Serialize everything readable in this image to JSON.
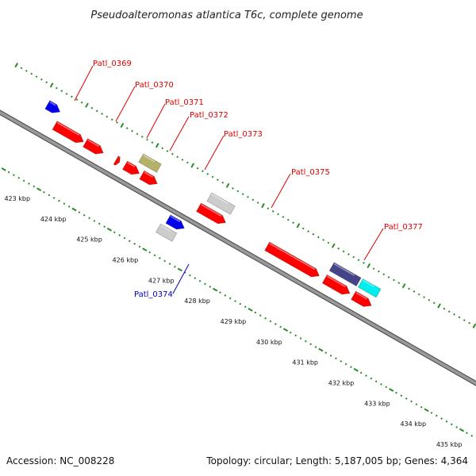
{
  "title": "Pseudoalteromonas atlantica T6c, complete genome",
  "footer": {
    "accession": "Accession: NC_008228",
    "summary": "Topology: circular; Length: 5,187,005 bp; Genes: 4,364"
  },
  "colors": {
    "backbone": "#8c8c8c",
    "backbone_edge": "#555555",
    "ticks": "#2a8a2a",
    "forward_cds": "#ff0000",
    "reverse_cds": "#ff0000",
    "label_red": "#dd0000",
    "label_blue": "#0000bb",
    "gene_blue": "#0000ee",
    "gene_gray": "#cccccc",
    "gene_olive": "#b5b06a",
    "gene_navy": "#444488",
    "gene_cyan": "#00eeee"
  },
  "scale_labels": [
    "423 kbp",
    "424 kbp",
    "425 kbp",
    "426 kbp",
    "427 kbp",
    "428 kbp",
    "429 kbp",
    "430 kbp",
    "431 kbp",
    "432 kbp",
    "433 kbp",
    "434 kbp",
    "435 kbp"
  ],
  "gene_labels": [
    {
      "text": "Patl_0369",
      "color": "label_red"
    },
    {
      "text": "Patl_0370",
      "color": "label_red"
    },
    {
      "text": "Patl_0371",
      "color": "label_red"
    },
    {
      "text": "Patl_0372",
      "color": "label_red"
    },
    {
      "text": "Patl_0373",
      "color": "label_red"
    },
    {
      "text": "Patl_0375",
      "color": "label_red"
    },
    {
      "text": "Patl_0377",
      "color": "label_red"
    },
    {
      "text": "Patl_0374",
      "color": "label_blue"
    }
  ],
  "features": [
    {
      "name": "blue-cds-left",
      "color": "gene_blue",
      "ring": "outer-fwd",
      "start": 422.6,
      "end": 422.95
    },
    {
      "name": "cds-patl-0369",
      "color": "forward_cds",
      "ring": "inner-fwd",
      "start": 423.0,
      "end": 423.8
    },
    {
      "name": "cds-patl-0370",
      "color": "forward_cds",
      "ring": "inner-fwd",
      "start": 423.85,
      "end": 424.35
    },
    {
      "name": "cds-patl-0371",
      "color": "forward_cds",
      "ring": "inner-fwd",
      "start": 424.7,
      "end": 424.8
    },
    {
      "name": "cds-patl-0372",
      "color": "forward_cds",
      "ring": "inner-fwd",
      "start": 424.95,
      "end": 425.35
    },
    {
      "name": "cds-patl-0373",
      "color": "forward_cds",
      "ring": "inner-fwd",
      "start": 425.42,
      "end": 425.85
    },
    {
      "name": "olive-feature",
      "color": "gene_olive",
      "ring": "outer-fwd",
      "start": 425.2,
      "end": 425.7
    },
    {
      "name": "gray-feature-0375",
      "color": "gene_gray",
      "ring": "outer-fwd",
      "start": 427.1,
      "end": 427.75
    },
    {
      "name": "cds-patl-0375",
      "color": "forward_cds",
      "ring": "inner-fwd",
      "start": 427.0,
      "end": 427.75
    },
    {
      "name": "blue-cds-0374",
      "color": "gene_blue",
      "ring": "inner-rev",
      "start": 426.5,
      "end": 426.95
    },
    {
      "name": "gray-feature-0374",
      "color": "gene_gray",
      "ring": "outer-rev",
      "start": 426.4,
      "end": 426.85
    },
    {
      "name": "cds-patl-0377",
      "color": "forward_cds",
      "ring": "inner-fwd",
      "start": 428.9,
      "end": 430.35
    },
    {
      "name": "navy-feature",
      "color": "gene_navy",
      "ring": "outer-fwd",
      "start": 430.5,
      "end": 431.25
    },
    {
      "name": "cds-patl-0377b",
      "color": "forward_cds",
      "ring": "inner-fwd",
      "start": 430.5,
      "end": 431.2
    },
    {
      "name": "cyan-feature",
      "color": "gene_cyan",
      "ring": "outer-fwd",
      "start": 431.3,
      "end": 431.8
    },
    {
      "name": "cds-right-edge",
      "color": "forward_cds",
      "ring": "inner-fwd",
      "start": 431.3,
      "end": 431.8
    }
  ]
}
